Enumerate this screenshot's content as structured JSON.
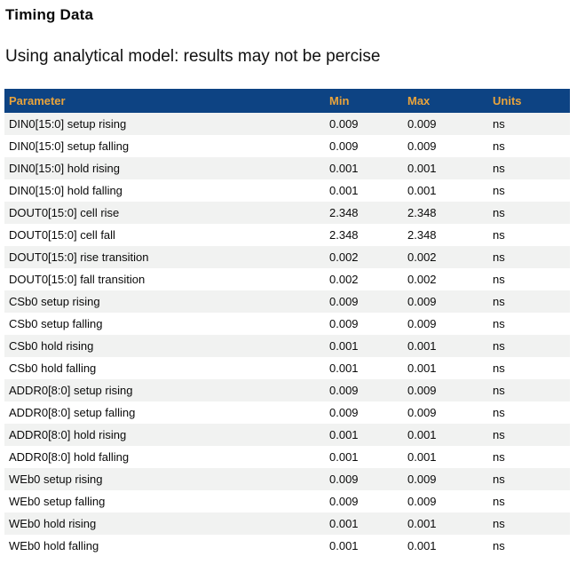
{
  "page": {
    "title": "Timing Data",
    "subtitle": "Using analytical model: results may not be percise"
  },
  "colors": {
    "header_bg": "#0d4383",
    "header_text": "#e8a33c",
    "row_alt_bg": "#f1f2f1"
  },
  "table": {
    "columns": {
      "parameter": "Parameter",
      "min": "Min",
      "max": "Max",
      "units": "Units"
    },
    "rows": [
      {
        "parameter": "DIN0[15:0] setup rising",
        "min": "0.009",
        "max": "0.009",
        "units": "ns"
      },
      {
        "parameter": "DIN0[15:0] setup falling",
        "min": "0.009",
        "max": "0.009",
        "units": "ns"
      },
      {
        "parameter": "DIN0[15:0] hold rising",
        "min": "0.001",
        "max": "0.001",
        "units": "ns"
      },
      {
        "parameter": "DIN0[15:0] hold falling",
        "min": "0.001",
        "max": "0.001",
        "units": "ns"
      },
      {
        "parameter": "DOUT0[15:0] cell rise",
        "min": "2.348",
        "max": "2.348",
        "units": "ns"
      },
      {
        "parameter": "DOUT0[15:0] cell fall",
        "min": "2.348",
        "max": "2.348",
        "units": "ns"
      },
      {
        "parameter": "DOUT0[15:0] rise transition",
        "min": "0.002",
        "max": "0.002",
        "units": "ns"
      },
      {
        "parameter": "DOUT0[15:0] fall transition",
        "min": "0.002",
        "max": "0.002",
        "units": "ns"
      },
      {
        "parameter": "CSb0 setup rising",
        "min": "0.009",
        "max": "0.009",
        "units": "ns"
      },
      {
        "parameter": "CSb0 setup falling",
        "min": "0.009",
        "max": "0.009",
        "units": "ns"
      },
      {
        "parameter": "CSb0 hold rising",
        "min": "0.001",
        "max": "0.001",
        "units": "ns"
      },
      {
        "parameter": "CSb0 hold falling",
        "min": "0.001",
        "max": "0.001",
        "units": "ns"
      },
      {
        "parameter": "ADDR0[8:0] setup rising",
        "min": "0.009",
        "max": "0.009",
        "units": "ns"
      },
      {
        "parameter": "ADDR0[8:0] setup falling",
        "min": "0.009",
        "max": "0.009",
        "units": "ns"
      },
      {
        "parameter": "ADDR0[8:0] hold rising",
        "min": "0.001",
        "max": "0.001",
        "units": "ns"
      },
      {
        "parameter": "ADDR0[8:0] hold falling",
        "min": "0.001",
        "max": "0.001",
        "units": "ns"
      },
      {
        "parameter": "WEb0 setup rising",
        "min": "0.009",
        "max": "0.009",
        "units": "ns"
      },
      {
        "parameter": "WEb0 setup falling",
        "min": "0.009",
        "max": "0.009",
        "units": "ns"
      },
      {
        "parameter": "WEb0 hold rising",
        "min": "0.001",
        "max": "0.001",
        "units": "ns"
      },
      {
        "parameter": "WEb0 hold falling",
        "min": "0.001",
        "max": "0.001",
        "units": "ns"
      }
    ]
  }
}
